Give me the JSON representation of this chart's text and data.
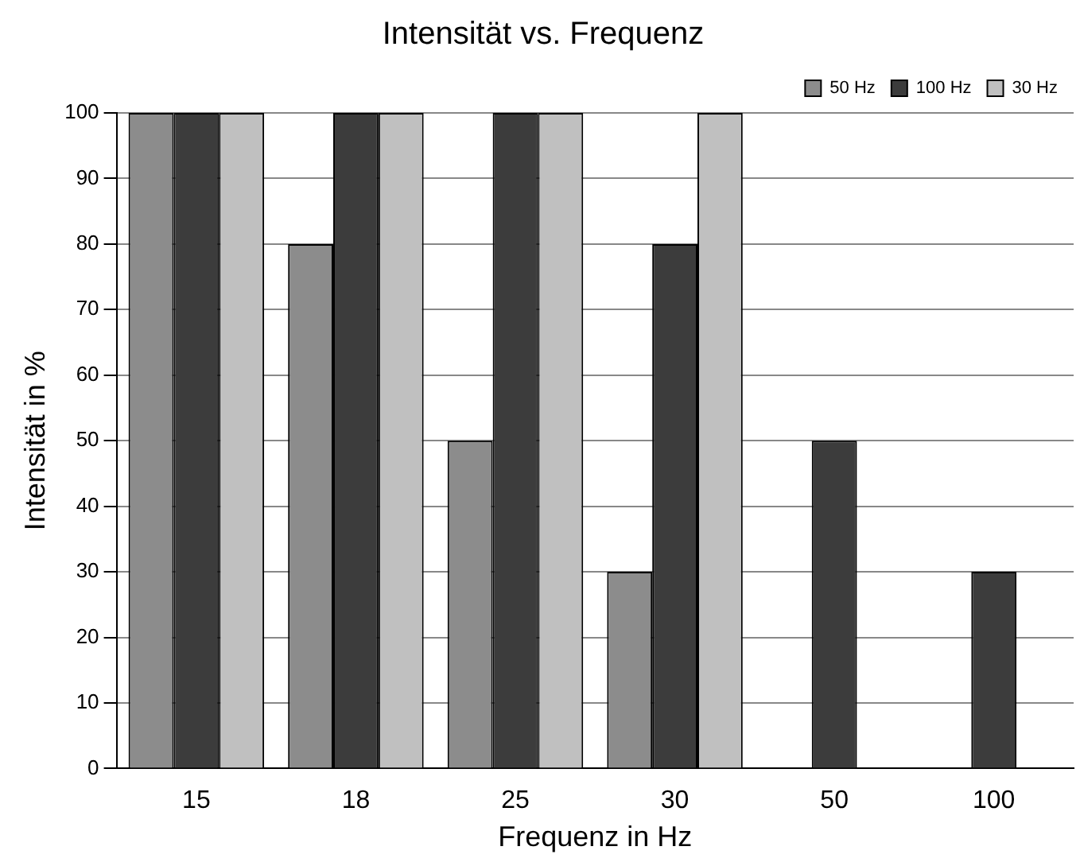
{
  "chart_data": {
    "type": "bar",
    "title": "Intensität vs. Frequenz",
    "xlabel": "Frequenz in Hz",
    "ylabel": "Intensität in %",
    "categories": [
      "15",
      "18",
      "25",
      "30",
      "50",
      "100"
    ],
    "series": [
      {
        "name": "50 Hz",
        "color": "#8c8c8c",
        "values": [
          100,
          80,
          50,
          30,
          null,
          null
        ]
      },
      {
        "name": "100 Hz",
        "color": "#3c3c3c",
        "values": [
          100,
          100,
          100,
          80,
          50,
          30
        ]
      },
      {
        "name": "30 Hz",
        "color": "#c0c0c0",
        "values": [
          100,
          100,
          100,
          100,
          null,
          null
        ]
      }
    ],
    "ylim": [
      0,
      100
    ],
    "yticks": [
      0,
      10,
      20,
      30,
      40,
      50,
      60,
      70,
      80,
      90,
      100
    ],
    "grid": "y",
    "legend": "top right"
  }
}
